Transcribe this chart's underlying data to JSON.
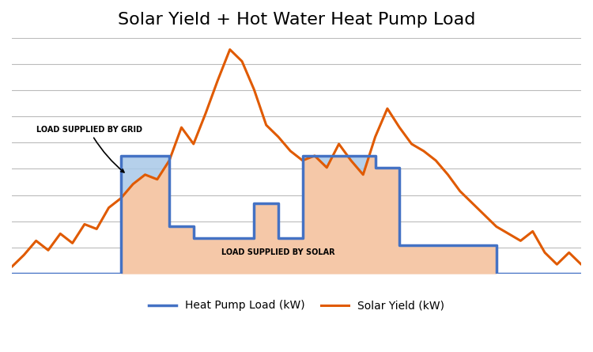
{
  "title": "Solar Yield + Hot Water Heat Pump Load",
  "title_fontsize": 16,
  "legend_labels": [
    "Heat Pump Load (kW)",
    "Solar Yield (kW)"
  ],
  "heat_pump_color": "#4472C4",
  "solar_color": "#E05A00",
  "fill_solar_color": "#F5C8A8",
  "fill_grid_color": "#A8C8E8",
  "background_color": "#FFFFFF",
  "grid_color": "#BBBBBB",
  "annotation_grid": "LOAD SUPPLIED BY GRID",
  "annotation_solar": "LOAD SUPPLIED BY SOLAR",
  "heat_pump_x": [
    0,
    9,
    9,
    13,
    13,
    15,
    15,
    20,
    20,
    22,
    22,
    24,
    24,
    30,
    30,
    32,
    32,
    40,
    40,
    47
  ],
  "heat_pump_y": [
    0,
    0,
    5,
    5,
    2,
    2,
    1.5,
    1.5,
    3,
    3,
    1.5,
    1.5,
    5,
    5,
    4.5,
    4.5,
    1.2,
    1.2,
    0,
    0
  ],
  "solar_x": [
    0,
    1,
    2,
    3,
    4,
    5,
    6,
    7,
    8,
    9,
    10,
    11,
    12,
    13,
    14,
    15,
    16,
    17,
    18,
    19,
    20,
    21,
    22,
    23,
    24,
    25,
    26,
    27,
    28,
    29,
    30,
    31,
    32,
    33,
    34,
    35,
    36,
    37,
    38,
    39,
    40,
    41,
    42,
    43,
    44,
    45,
    46,
    47
  ],
  "solar_y": [
    0.3,
    0.8,
    1.4,
    1.0,
    1.7,
    1.3,
    2.1,
    1.9,
    2.8,
    3.2,
    3.8,
    4.2,
    4.0,
    4.8,
    6.2,
    5.5,
    6.8,
    8.2,
    9.5,
    9.0,
    7.8,
    6.3,
    5.8,
    5.2,
    4.8,
    5.0,
    4.5,
    5.5,
    4.8,
    4.2,
    5.8,
    7.0,
    6.2,
    5.5,
    5.2,
    4.8,
    4.2,
    3.5,
    3.0,
    2.5,
    2.0,
    1.7,
    1.4,
    1.8,
    0.9,
    0.4,
    0.9,
    0.4
  ],
  "ylim": [
    0,
    10
  ],
  "xlim": [
    0,
    47
  ],
  "n_grid_lines": 9
}
